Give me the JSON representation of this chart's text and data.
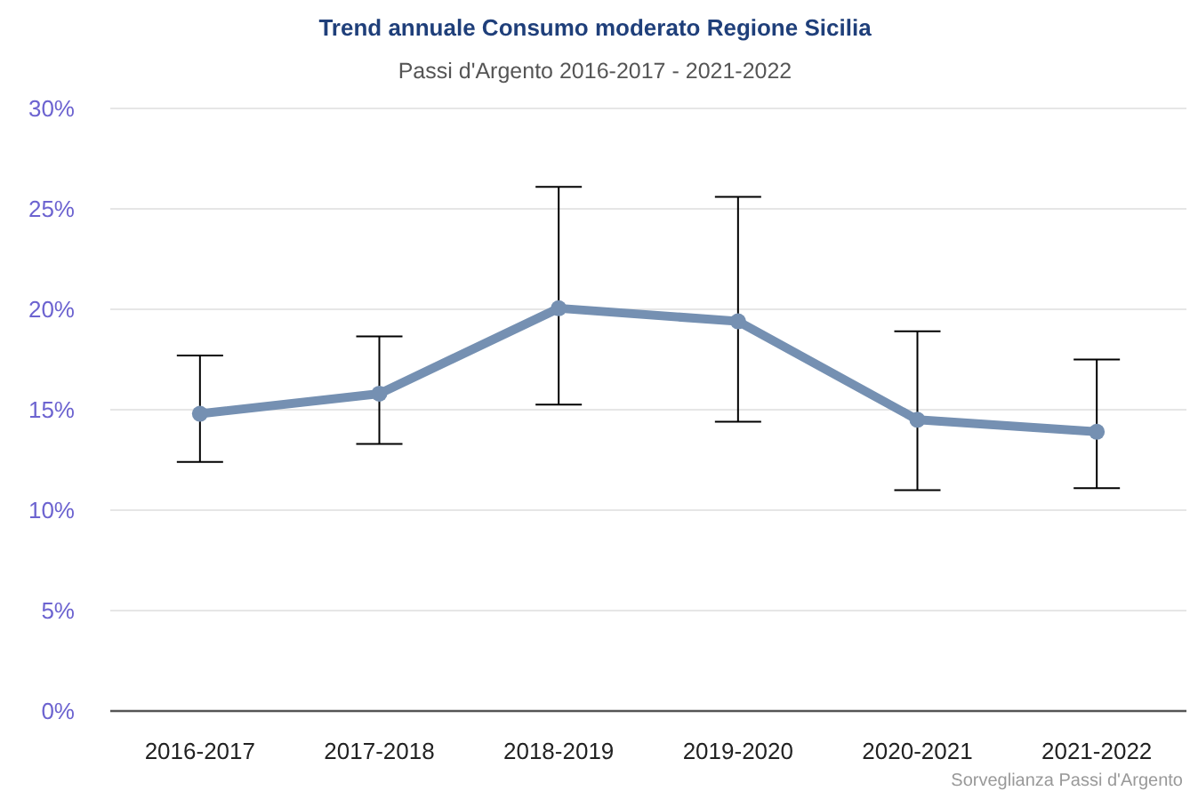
{
  "chart_data": {
    "type": "line",
    "title": "Trend annuale Consumo moderato Regione Sicilia",
    "subtitle": "Passi d'Argento 2016-2017 - 2021-2022",
    "categories": [
      "2016-2017",
      "2017-2018",
      "2018-2019",
      "2019-2020",
      "2020-2021",
      "2021-2022"
    ],
    "series": [
      {
        "color": "#7590b2",
        "values": [
          14.8,
          15.8,
          20.05,
          19.4,
          14.5,
          13.9
        ],
        "errors": [
          [
            12.4,
            17.7
          ],
          [
            13.3,
            18.65
          ],
          [
            15.25,
            26.1
          ],
          [
            14.4,
            25.6
          ],
          [
            11.0,
            18.9
          ],
          [
            11.1,
            17.5
          ]
        ]
      }
    ],
    "ylim": [
      0,
      30
    ],
    "yticks": [
      {
        "value": 0,
        "label": "0%"
      },
      {
        "value": 5,
        "label": "5%"
      },
      {
        "value": 10,
        "label": "10%"
      },
      {
        "value": 15,
        "label": "15%"
      },
      {
        "value": 20,
        "label": "20%"
      },
      {
        "value": 25,
        "label": "25%"
      },
      {
        "value": 30,
        "label": "30%"
      }
    ],
    "grid": "y",
    "marker": "circle",
    "line_style": "solid",
    "annotations": [
      "Sorveglianza Passi d'Argento"
    ]
  }
}
